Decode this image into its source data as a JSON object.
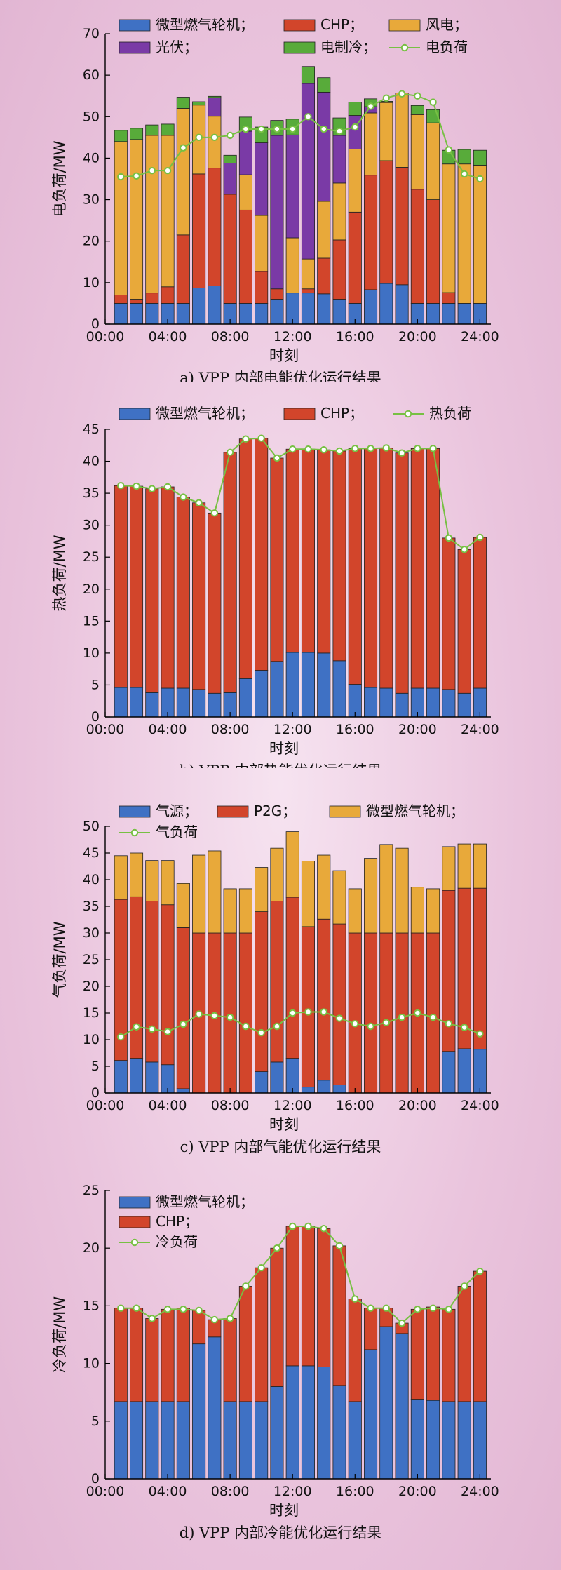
{
  "colors": {
    "mt": "#3f71c4",
    "chp": "#d2452b",
    "wind": "#e8a93a",
    "pv": "#7a3aa6",
    "ec": "#58ab3a",
    "gas": "#3f71c4",
    "p2g": "#d2452b",
    "gmt": "#e8a93a",
    "load": "#77c043"
  },
  "chart_data": [
    {
      "id": "a",
      "type": "bar",
      "stacked": true,
      "caption": "a) VPP 内部电能优化运行结果",
      "xlabel": "时刻",
      "ylabel": "电负荷/MW",
      "ylim": [
        0,
        70
      ],
      "yticks": [
        0,
        10,
        20,
        30,
        40,
        50,
        60,
        70
      ],
      "xticks": [
        "00:00",
        "04:00",
        "08:00",
        "12:00",
        "16:00",
        "20:00",
        "24:00"
      ],
      "x_hours": [
        1,
        2,
        3,
        4,
        5,
        6,
        7,
        8,
        9,
        10,
        11,
        12,
        13,
        14,
        15,
        16,
        17,
        18,
        19,
        20,
        21,
        22,
        23,
        24
      ],
      "legend_position": "top",
      "series": [
        {
          "name": "微型燃气轮机；",
          "color_key": "mt",
          "values": [
            5,
            5,
            5,
            5,
            5,
            8.7,
            9.2,
            5,
            5,
            5,
            6,
            7.5,
            7.5,
            7.3,
            6,
            5,
            8.3,
            9.8,
            9.5,
            5,
            5,
            5,
            5,
            5
          ]
        },
        {
          "name": "CHP；",
          "color_key": "chp",
          "values": [
            2,
            1,
            2.5,
            4,
            16.5,
            27.5,
            28.4,
            26.3,
            22.5,
            7.7,
            2.5,
            0,
            1,
            8.6,
            14.3,
            22,
            27.6,
            29.6,
            28.3,
            27.5,
            25,
            2.6,
            0,
            0
          ]
        },
        {
          "name": "风电；",
          "color_key": "wind",
          "values": [
            37,
            38.5,
            38,
            36.5,
            30.5,
            16.6,
            12.5,
            0,
            8.5,
            13.5,
            0,
            13.3,
            7.2,
            13.7,
            13.7,
            15.2,
            15,
            14,
            17.9,
            18,
            18.5,
            31,
            33.6,
            33.3
          ]
        },
        {
          "name": "光伏；",
          "color_key": "pv",
          "values": [
            0,
            0,
            0,
            0,
            0,
            0,
            4.5,
            7.5,
            10.5,
            17.5,
            37,
            24.8,
            42.3,
            26.3,
            11.5,
            8.1,
            1.5,
            0,
            0,
            0,
            0,
            0,
            0,
            0
          ]
        },
        {
          "name": "电制冷；",
          "color_key": "ec",
          "values": [
            2.7,
            2.7,
            2.5,
            2.7,
            2.7,
            0.8,
            0.3,
            1.9,
            3.4,
            3.8,
            3.6,
            3.8,
            4.1,
            3.5,
            4.2,
            3.2,
            1.9,
            0.3,
            0,
            2.2,
            3.2,
            3.3,
            3.5,
            3.6
          ]
        },
        {
          "name": "电负荷",
          "kind": "line",
          "color_key": "load",
          "values": [
            35.5,
            35.7,
            37,
            37,
            42.5,
            45,
            45,
            45.5,
            47,
            47,
            47,
            47,
            50,
            47,
            46.5,
            47.5,
            52.5,
            54.5,
            55.5,
            55,
            53.5,
            42,
            36.2,
            35
          ]
        }
      ]
    },
    {
      "id": "b",
      "type": "bar",
      "stacked": true,
      "caption": "b) VPP 内部热能优化运行结果",
      "xlabel": "时刻",
      "ylabel": "热负荷/MW",
      "ylim": [
        0,
        45
      ],
      "yticks": [
        0,
        5,
        10,
        15,
        20,
        25,
        30,
        35,
        40,
        45
      ],
      "xticks": [
        "00:00",
        "04:00",
        "08:00",
        "12:00",
        "16:00",
        "20:00",
        "24:00"
      ],
      "x_hours": [
        1,
        2,
        3,
        4,
        5,
        6,
        7,
        8,
        9,
        10,
        11,
        12,
        13,
        14,
        15,
        16,
        17,
        18,
        19,
        20,
        21,
        22,
        23,
        24
      ],
      "legend_position": "top",
      "series": [
        {
          "name": "微型燃气轮机；",
          "color_key": "mt",
          "values": [
            4.6,
            4.6,
            3.8,
            4.5,
            4.5,
            4.3,
            3.7,
            3.8,
            6,
            7.3,
            8.7,
            10.1,
            10.1,
            10,
            8.8,
            5.1,
            4.6,
            4.5,
            3.7,
            4.5,
            4.5,
            4.3,
            3.7,
            4.5
          ]
        },
        {
          "name": "CHP；",
          "color_key": "chp",
          "values": [
            31.6,
            31.5,
            31.9,
            31.5,
            29.9,
            29.2,
            28.2,
            37.6,
            37.5,
            36.3,
            31.8,
            31.8,
            31.8,
            31.8,
            32.8,
            36.9,
            37.4,
            37.6,
            37.6,
            37.5,
            37.5,
            23.7,
            22.5,
            23.6
          ]
        },
        {
          "name": "热负荷",
          "kind": "line",
          "color_key": "load",
          "values": [
            36.2,
            36.1,
            35.7,
            36,
            34.4,
            33.5,
            31.9,
            41.4,
            43.5,
            43.6,
            40.5,
            41.9,
            41.9,
            41.8,
            41.6,
            42,
            42,
            42.1,
            41.3,
            42,
            42,
            28,
            26.2,
            28.1
          ]
        }
      ]
    },
    {
      "id": "c",
      "type": "bar",
      "stacked": true,
      "caption": "c) VPP 内部气能优化运行结果",
      "xlabel": "时刻",
      "ylabel": "气负荷/MW",
      "ylim": [
        0,
        50
      ],
      "yticks": [
        0,
        5,
        10,
        15,
        20,
        25,
        30,
        35,
        40,
        45,
        50
      ],
      "xticks": [
        "00:00",
        "04:00",
        "08:00",
        "12:00",
        "16:00",
        "20:00",
        "24:00"
      ],
      "x_hours": [
        1,
        2,
        3,
        4,
        5,
        6,
        7,
        8,
        9,
        10,
        11,
        12,
        13,
        14,
        15,
        16,
        17,
        18,
        19,
        20,
        21,
        22,
        23,
        24
      ],
      "legend_position": "top",
      "series": [
        {
          "name": "气源；",
          "color_key": "gas",
          "values": [
            6.1,
            6.5,
            5.8,
            5.3,
            0.8,
            0,
            0,
            0,
            0,
            4,
            5.8,
            6.5,
            1.1,
            2.4,
            1.5,
            0,
            0,
            0,
            0,
            0,
            0,
            7.8,
            8.3,
            8.2
          ]
        },
        {
          "name": "P2G；",
          "color_key": "p2g",
          "values": [
            30.2,
            30.3,
            30.2,
            30,
            30.2,
            30,
            30,
            30,
            30,
            30,
            30.2,
            30.2,
            30.1,
            30.2,
            30.2,
            30,
            30,
            30,
            30,
            30,
            30,
            30.2,
            30.1,
            30.2
          ]
        },
        {
          "name": "微型燃气轮机；",
          "color_key": "gmt",
          "values": [
            8.2,
            8.2,
            7.6,
            8.3,
            8.3,
            14.6,
            15.4,
            8.3,
            8.3,
            8.3,
            9.9,
            12.3,
            12.3,
            12,
            10,
            8.3,
            14,
            16.6,
            15.9,
            8.6,
            8.3,
            8.2,
            8.3,
            8.3
          ]
        },
        {
          "name": "气负荷",
          "kind": "line",
          "color_key": "load",
          "values": [
            10.5,
            12.4,
            12,
            11.5,
            12.9,
            14.8,
            14.5,
            14.2,
            12.5,
            11.3,
            12.5,
            15,
            15.2,
            15.2,
            14,
            13,
            12.5,
            13.2,
            14.2,
            15,
            14.2,
            13,
            12.3,
            11.1
          ]
        }
      ]
    },
    {
      "id": "d",
      "type": "bar",
      "stacked": true,
      "caption": "d) VPP 内部冷能优化运行结果",
      "xlabel": "时刻",
      "ylabel": "冷负荷/MW",
      "ylim": [
        0,
        25
      ],
      "yticks": [
        0,
        5,
        10,
        15,
        20,
        25
      ],
      "xticks": [
        "00:00",
        "04:00",
        "08:00",
        "12:00",
        "16:00",
        "20:00",
        "24:00"
      ],
      "x_hours": [
        1,
        2,
        3,
        4,
        5,
        6,
        7,
        8,
        9,
        10,
        11,
        12,
        13,
        14,
        15,
        16,
        17,
        18,
        19,
        20,
        21,
        22,
        23,
        24
      ],
      "legend_position": "top-left",
      "series": [
        {
          "name": "微型燃气轮机；",
          "color_key": "mt",
          "values": [
            6.7,
            6.7,
            6.7,
            6.7,
            6.7,
            11.7,
            12.3,
            6.7,
            6.7,
            6.7,
            8,
            9.8,
            9.8,
            9.7,
            8.1,
            6.7,
            11.2,
            13.2,
            12.6,
            6.9,
            6.8,
            6.7,
            6.7,
            6.7
          ]
        },
        {
          "name": "CHP；",
          "color_key": "chp",
          "values": [
            8.1,
            8.1,
            7.2,
            8,
            8.1,
            2.9,
            1.5,
            7.2,
            10,
            11.6,
            12,
            12.1,
            12.1,
            12,
            12.1,
            8.9,
            3.6,
            1.6,
            0.9,
            7.8,
            8.1,
            8,
            10,
            11.3
          ]
        },
        {
          "name": "冷负荷",
          "kind": "line",
          "color_key": "load",
          "values": [
            14.8,
            14.8,
            13.9,
            14.7,
            14.7,
            14.6,
            13.8,
            13.9,
            16.7,
            18.3,
            20,
            21.9,
            21.9,
            21.7,
            20.2,
            15.6,
            14.8,
            14.8,
            13.5,
            14.7,
            14.8,
            14.7,
            16.7,
            18
          ]
        }
      ]
    }
  ]
}
